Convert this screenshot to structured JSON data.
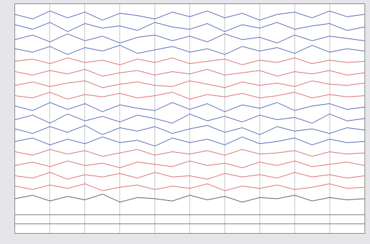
{
  "chart_data": {
    "type": "line",
    "x": [
      0,
      0.5,
      1,
      1.5,
      2,
      2.5,
      3,
      3.5,
      4,
      4.5,
      5,
      5.5,
      6,
      6.5,
      7,
      7.5,
      8,
      8.5,
      9,
      9.5,
      10
    ],
    "xlim": [
      0,
      10
    ],
    "xticks": [
      0,
      1,
      2,
      3,
      4,
      5,
      6,
      7,
      8,
      9,
      10
    ],
    "ylim": [
      0,
      20
    ],
    "grid": true,
    "tick_labels": false,
    "series": [
      {
        "color": "#2a3fa0",
        "values": [
          19.1,
          18.7,
          19.4,
          18.8,
          19.3,
          18.6,
          19.2,
          19.0,
          18.7,
          19.3,
          18.9,
          19.4,
          18.8,
          19.2,
          18.6,
          19.1,
          19.3,
          18.8,
          19.4,
          18.9,
          19.1
        ]
      },
      {
        "color": "#2a3fa0",
        "values": [
          18.2,
          17.8,
          18.4,
          17.6,
          18.3,
          17.9,
          18.1,
          17.7,
          18.4,
          18.0,
          17.8,
          18.3,
          17.6,
          18.2,
          17.9,
          18.4,
          17.8,
          18.1,
          18.3,
          17.7,
          18.0
        ]
      },
      {
        "color": "#2a3fa0",
        "values": [
          16.9,
          17.3,
          16.7,
          17.4,
          16.8,
          17.2,
          16.6,
          17.1,
          17.3,
          16.8,
          17.2,
          16.7,
          17.4,
          16.9,
          17.1,
          16.6,
          17.3,
          16.8,
          17.2,
          17.0,
          16.8
        ]
      },
      {
        "color": "#2a3fa0",
        "values": [
          16.1,
          15.8,
          16.3,
          15.6,
          16.2,
          15.9,
          16.4,
          15.7,
          16.0,
          16.3,
          15.8,
          16.1,
          15.6,
          16.3,
          15.9,
          16.2,
          15.7,
          16.4,
          15.8,
          16.1,
          15.9
        ]
      },
      {
        "color": "#d04848",
        "values": [
          15.0,
          15.2,
          14.8,
          15.3,
          14.9,
          15.1,
          14.7,
          15.2,
          14.9,
          15.3,
          14.8,
          15.0,
          15.2,
          14.7,
          15.1,
          14.9,
          15.3,
          14.8,
          15.1,
          14.9,
          15.0
        ]
      },
      {
        "color": "#d04848",
        "values": [
          14.1,
          13.8,
          14.2,
          13.9,
          14.3,
          13.7,
          14.0,
          14.2,
          13.8,
          14.1,
          13.9,
          14.3,
          13.8,
          14.0,
          14.2,
          13.7,
          14.1,
          13.9,
          14.2,
          13.8,
          14.0
        ]
      },
      {
        "color": "#d04848",
        "values": [
          12.9,
          13.2,
          12.8,
          13.1,
          13.3,
          12.7,
          13.0,
          13.2,
          12.9,
          12.8,
          13.3,
          13.0,
          12.7,
          13.2,
          12.9,
          13.1,
          12.8,
          13.3,
          13.0,
          12.9,
          13.1
        ]
      },
      {
        "color": "#d04848",
        "values": [
          12.0,
          11.8,
          12.3,
          11.7,
          12.1,
          11.9,
          12.2,
          11.8,
          12.0,
          12.3,
          11.7,
          12.1,
          11.9,
          12.2,
          11.8,
          12.0,
          12.3,
          11.8,
          12.1,
          11.9,
          12.0
        ]
      },
      {
        "color": "#2a3fa0",
        "values": [
          11.1,
          10.7,
          11.4,
          10.8,
          11.3,
          10.6,
          11.2,
          10.9,
          10.7,
          11.4,
          10.8,
          11.3,
          10.6,
          11.2,
          10.9,
          11.4,
          10.7,
          11.1,
          11.3,
          10.8,
          11.0
        ]
      },
      {
        "color": "#2a3fa0",
        "values": [
          9.9,
          10.3,
          9.6,
          10.4,
          9.8,
          10.2,
          9.7,
          10.3,
          10.0,
          9.6,
          10.4,
          9.8,
          10.2,
          9.7,
          10.3,
          9.9,
          10.1,
          9.6,
          10.4,
          9.8,
          10.0
        ]
      },
      {
        "color": "#2a3fa0",
        "values": [
          9.1,
          8.7,
          9.3,
          8.8,
          9.4,
          8.6,
          9.2,
          8.9,
          9.3,
          8.7,
          9.1,
          9.4,
          8.8,
          9.2,
          8.6,
          9.3,
          8.9,
          9.1,
          8.7,
          9.2,
          9.0
        ]
      },
      {
        "color": "#2a3fa0",
        "values": [
          8.0,
          8.3,
          7.7,
          8.2,
          7.8,
          8.4,
          7.9,
          8.1,
          7.6,
          8.3,
          7.9,
          8.2,
          7.7,
          8.4,
          7.8,
          8.0,
          8.3,
          7.7,
          8.2,
          7.9,
          8.0
        ]
      },
      {
        "color": "#d04848",
        "values": [
          7.1,
          6.8,
          7.3,
          6.9,
          7.2,
          6.7,
          7.0,
          7.3,
          6.8,
          7.1,
          6.9,
          7.2,
          6.8,
          7.3,
          6.9,
          7.0,
          7.2,
          6.7,
          7.1,
          6.9,
          7.0
        ]
      },
      {
        "color": "#d04848",
        "values": [
          5.9,
          6.2,
          5.8,
          6.3,
          5.9,
          6.1,
          5.7,
          6.2,
          6.0,
          5.8,
          6.3,
          5.9,
          6.1,
          5.7,
          6.2,
          5.9,
          6.3,
          5.8,
          6.0,
          6.2,
          5.9
        ]
      },
      {
        "color": "#d04848",
        "values": [
          5.0,
          4.8,
          5.3,
          4.7,
          5.1,
          4.9,
          5.2,
          4.8,
          5.3,
          4.9,
          5.0,
          4.7,
          5.2,
          4.9,
          5.1,
          4.8,
          5.3,
          4.9,
          5.1,
          4.8,
          5.0
        ]
      },
      {
        "color": "#d04848",
        "values": [
          4.1,
          3.8,
          4.2,
          3.9,
          4.3,
          3.7,
          4.0,
          4.2,
          3.8,
          4.1,
          3.9,
          4.3,
          3.7,
          4.1,
          3.9,
          4.2,
          3.8,
          4.0,
          4.3,
          3.9,
          4.0
        ]
      },
      {
        "color": "#333333",
        "values": [
          3.0,
          3.3,
          2.8,
          3.2,
          2.9,
          3.4,
          2.7,
          3.1,
          3.0,
          2.8,
          3.3,
          2.9,
          3.2,
          2.7,
          3.1,
          3.0,
          3.3,
          2.8,
          3.1,
          2.9,
          3.0
        ]
      },
      {
        "color": "#555555",
        "values": [
          1.6,
          1.6,
          1.6,
          1.6,
          1.6,
          1.6,
          1.6,
          1.6,
          1.6,
          1.6,
          1.6,
          1.6,
          1.6,
          1.6,
          1.6,
          1.6,
          1.6,
          1.6,
          1.6,
          1.6,
          1.6
        ]
      },
      {
        "color": "#555555",
        "values": [
          0.8,
          0.8,
          0.8,
          0.8,
          0.8,
          0.8,
          0.8,
          0.8,
          0.8,
          0.8,
          0.8,
          0.8,
          0.8,
          0.8,
          0.8,
          0.8,
          0.8,
          0.8,
          0.8,
          0.8,
          0.8
        ]
      }
    ]
  }
}
